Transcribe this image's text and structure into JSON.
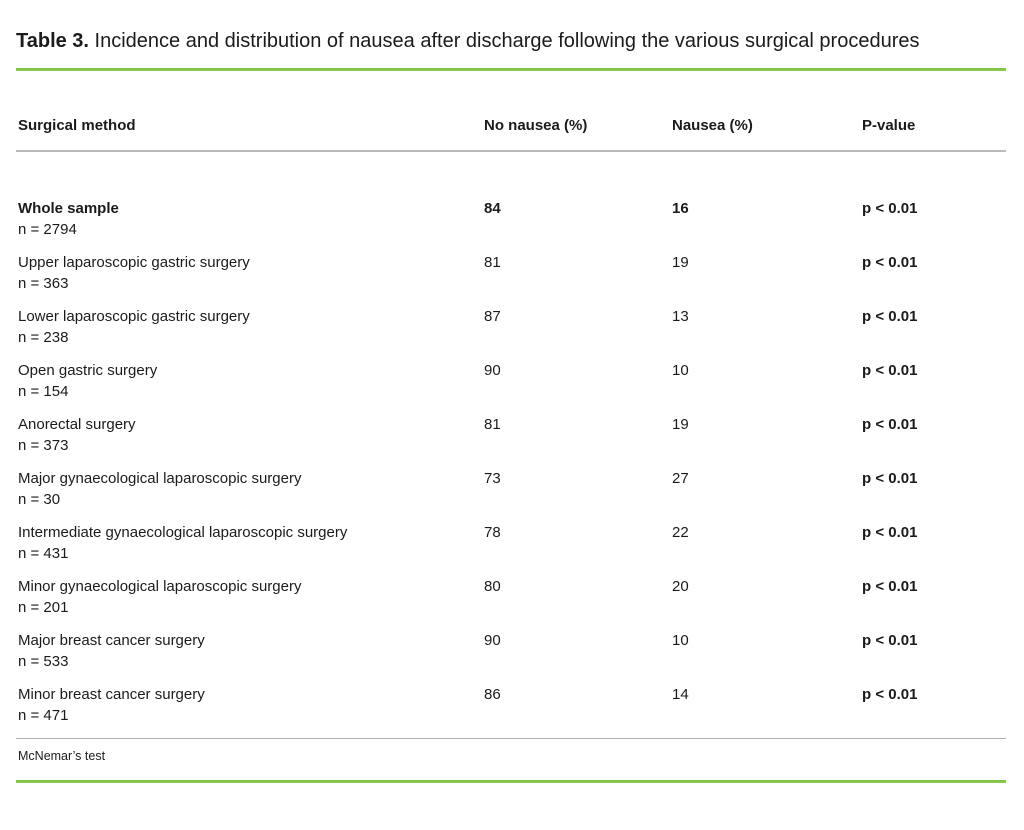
{
  "title": {
    "label": "Table 3.",
    "text": " Incidence and distribution of nausea after discharge following the various surgical procedures"
  },
  "table": {
    "headers": {
      "method": "Surgical method",
      "no_nausea": "No nausea (%)",
      "nausea": "Nausea (%)",
      "p_value": "P-value"
    },
    "rows": [
      {
        "method": "Whole sample",
        "n": "n = 2794",
        "no_nausea": "84",
        "nausea": "16",
        "p_value": "p < 0.01",
        "bold": true
      },
      {
        "method": "Upper laparoscopic gastric surgery",
        "n": "n = 363",
        "no_nausea": "81",
        "nausea": "19",
        "p_value": "p < 0.01",
        "bold": false
      },
      {
        "method": "Lower laparoscopic gastric surgery",
        "n": "n = 238",
        "no_nausea": "87",
        "nausea": "13",
        "p_value": "p < 0.01",
        "bold": false
      },
      {
        "method": "Open gastric surgery",
        "n": "n = 154",
        "no_nausea": "90",
        "nausea": "10",
        "p_value": "p < 0.01",
        "bold": false
      },
      {
        "method": "Anorectal surgery",
        "n": "n = 373",
        "no_nausea": "81",
        "nausea": "19",
        "p_value": "p < 0.01",
        "bold": false
      },
      {
        "method": "Major gynaecological laparoscopic surgery",
        "n": "n = 30",
        "no_nausea": "73",
        "nausea": "27",
        "p_value": "p < 0.01",
        "bold": false
      },
      {
        "method": "Intermediate gynaecological laparoscopic surgery",
        "n": "n = 431",
        "no_nausea": "78",
        "nausea": "22",
        "p_value": "p < 0.01",
        "bold": false
      },
      {
        "method": "Minor gynaecological laparoscopic surgery",
        "n": "n = 201",
        "no_nausea": "80",
        "nausea": "20",
        "p_value": "p < 0.01",
        "bold": false
      },
      {
        "method": "Major breast cancer surgery",
        "n": "n = 533",
        "no_nausea": "90",
        "nausea": "10",
        "p_value": "p < 0.01",
        "bold": false
      },
      {
        "method": "Minor breast cancer surgery",
        "n": "n = 471",
        "no_nausea": "86",
        "nausea": "14",
        "p_value": "p < 0.01",
        "bold": false
      }
    ],
    "footnote": "McNemar’s test"
  },
  "colors": {
    "accent_green": "#84c441",
    "rule_gray": "#b9b9b9",
    "text": "#1b1b1b"
  }
}
